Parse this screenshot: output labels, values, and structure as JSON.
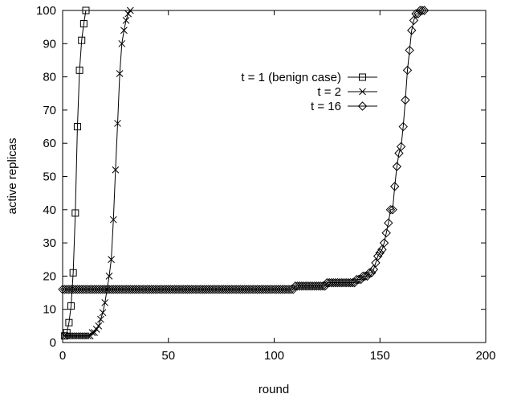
{
  "chart_data": {
    "type": "line",
    "xlabel": "round",
    "ylabel": "active replicas",
    "xlim": [
      0,
      200
    ],
    "ylim": [
      0,
      100
    ],
    "xticks": [
      0,
      50,
      100,
      150,
      200
    ],
    "yticks": [
      0,
      10,
      20,
      30,
      40,
      50,
      60,
      70,
      80,
      90,
      100
    ],
    "grid": false,
    "legend_position": "right",
    "series": [
      {
        "name": "t = 1 (benign case)",
        "marker": "square",
        "x": [
          1,
          2,
          3,
          4,
          5,
          6,
          7,
          8,
          9,
          10,
          11
        ],
        "y": [
          2,
          3,
          6,
          11,
          21,
          39,
          65,
          82,
          91,
          96,
          100
        ]
      },
      {
        "name": "t = 2",
        "marker": "cross",
        "x": [
          1,
          2,
          3,
          4,
          5,
          6,
          7,
          8,
          9,
          10,
          11,
          12,
          13,
          14,
          15,
          16,
          17,
          18,
          19,
          20,
          21,
          22,
          23,
          24,
          25,
          26,
          27,
          28,
          29,
          30,
          31,
          32
        ],
        "y": [
          2,
          2,
          2,
          2,
          2,
          2,
          2,
          2,
          2,
          2,
          2,
          2,
          2,
          3,
          3,
          4,
          5,
          7,
          9,
          12,
          16,
          20,
          25,
          37,
          52,
          66,
          81,
          90,
          94,
          97,
          99,
          100
        ]
      },
      {
        "name": "t = 16",
        "marker": "diamond",
        "x": [
          0,
          1,
          2,
          3,
          4,
          5,
          6,
          7,
          8,
          9,
          10,
          11,
          12,
          13,
          14,
          15,
          16,
          17,
          18,
          19,
          20,
          21,
          22,
          23,
          24,
          25,
          26,
          27,
          28,
          29,
          30,
          31,
          32,
          33,
          34,
          35,
          36,
          37,
          38,
          39,
          40,
          41,
          42,
          43,
          44,
          45,
          46,
          47,
          48,
          49,
          50,
          51,
          52,
          53,
          54,
          55,
          56,
          57,
          58,
          59,
          60,
          61,
          62,
          63,
          64,
          65,
          66,
          67,
          68,
          69,
          70,
          71,
          72,
          73,
          74,
          75,
          76,
          77,
          78,
          79,
          80,
          81,
          82,
          83,
          84,
          85,
          86,
          87,
          88,
          89,
          90,
          91,
          92,
          93,
          94,
          95,
          96,
          97,
          98,
          99,
          100,
          101,
          102,
          103,
          104,
          105,
          106,
          107,
          108,
          109,
          110,
          111,
          112,
          113,
          114,
          115,
          116,
          117,
          118,
          119,
          120,
          121,
          122,
          123,
          124,
          125,
          126,
          127,
          128,
          129,
          130,
          131,
          132,
          133,
          134,
          135,
          136,
          137,
          138,
          139,
          140,
          141,
          142,
          143,
          144,
          145,
          146,
          147,
          148,
          149,
          150,
          151,
          152,
          153,
          154,
          155,
          156,
          157,
          158,
          159,
          160,
          161,
          162,
          163,
          164,
          165,
          166,
          167,
          168,
          169,
          170,
          171
        ],
        "y": [
          16,
          16,
          16,
          16,
          16,
          16,
          16,
          16,
          16,
          16,
          16,
          16,
          16,
          16,
          16,
          16,
          16,
          16,
          16,
          16,
          16,
          16,
          16,
          16,
          16,
          16,
          16,
          16,
          16,
          16,
          16,
          16,
          16,
          16,
          16,
          16,
          16,
          16,
          16,
          16,
          16,
          16,
          16,
          16,
          16,
          16,
          16,
          16,
          16,
          16,
          16,
          16,
          16,
          16,
          16,
          16,
          16,
          16,
          16,
          16,
          16,
          16,
          16,
          16,
          16,
          16,
          16,
          16,
          16,
          16,
          16,
          16,
          16,
          16,
          16,
          16,
          16,
          16,
          16,
          16,
          16,
          16,
          16,
          16,
          16,
          16,
          16,
          16,
          16,
          16,
          16,
          16,
          16,
          16,
          16,
          16,
          16,
          16,
          16,
          16,
          16,
          16,
          16,
          16,
          16,
          16,
          16,
          16,
          16,
          16,
          17,
          17,
          17,
          17,
          17,
          17,
          17,
          17,
          17,
          17,
          17,
          17,
          17,
          17,
          17,
          18,
          18,
          18,
          18,
          18,
          18,
          18,
          18,
          18,
          18,
          18,
          18,
          18,
          18,
          19,
          19,
          19,
          20,
          20,
          20,
          21,
          21,
          22,
          24,
          26,
          27,
          28,
          30,
          33,
          36,
          40,
          40,
          47,
          53,
          57,
          59,
          65,
          73,
          82,
          88,
          94,
          97,
          99,
          99,
          100,
          100,
          100
        ]
      }
    ]
  }
}
